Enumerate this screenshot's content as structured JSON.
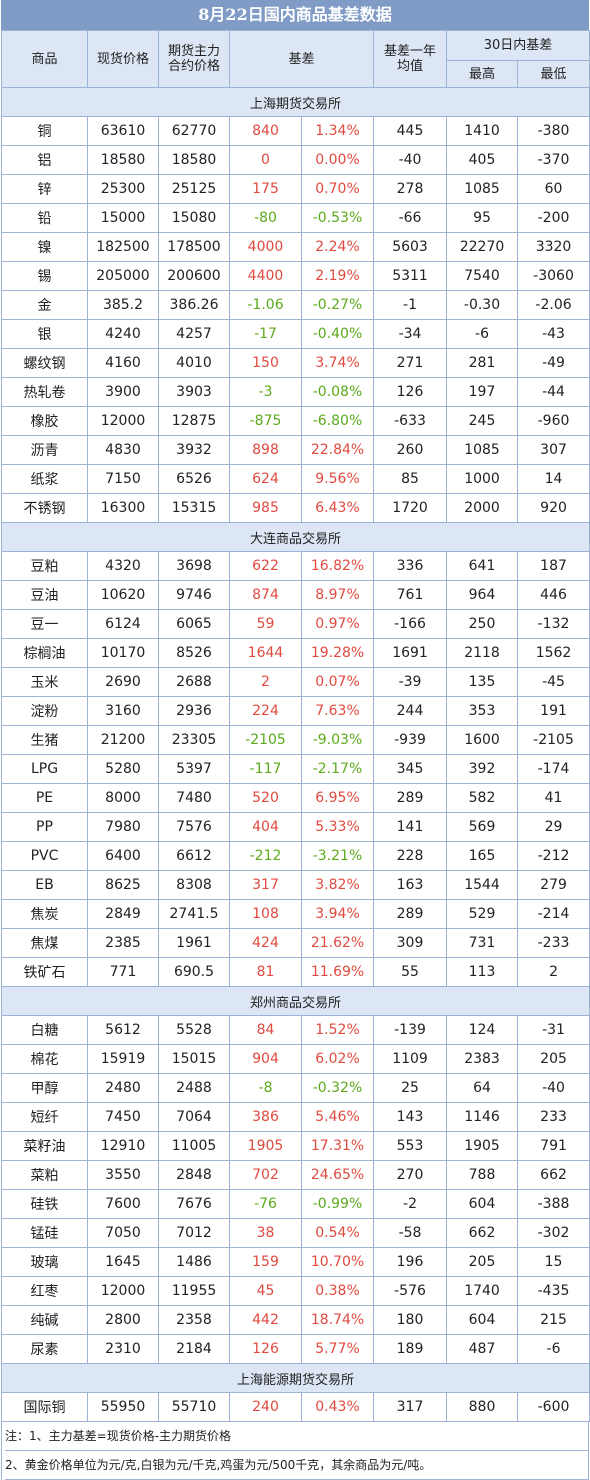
{
  "title": "8月22日国内商品基差数据",
  "header": {
    "commodity": "商品",
    "spot_price": "现货价格",
    "futures_price_line1": "期货主力",
    "futures_price_line2": "合约价格",
    "basis": "基差",
    "basis_avg_line1": "基差一年",
    "basis_avg_line2": "均值",
    "range30": "30日内基差",
    "high": "最高",
    "low": "最低"
  },
  "colors": {
    "header_bg": "#7f9bc6",
    "section_bg": "#dce6f4",
    "positive": "#e04a3f",
    "negative": "#5caa1c",
    "border": "#9db3d5"
  },
  "sections": [
    {
      "name": "上海期货交易所",
      "rows": [
        [
          "铜",
          "63610",
          "62770",
          "840",
          "1.34%",
          "445",
          "1410",
          "-380"
        ],
        [
          "铝",
          "18580",
          "18580",
          "0",
          "0.00%",
          "-40",
          "405",
          "-370"
        ],
        [
          "锌",
          "25300",
          "25125",
          "175",
          "0.70%",
          "278",
          "1085",
          "60"
        ],
        [
          "铅",
          "15000",
          "15080",
          "-80",
          "-0.53%",
          "-66",
          "95",
          "-200"
        ],
        [
          "镍",
          "182500",
          "178500",
          "4000",
          "2.24%",
          "5603",
          "22270",
          "3320"
        ],
        [
          "锡",
          "205000",
          "200600",
          "4400",
          "2.19%",
          "5311",
          "7540",
          "-3060"
        ],
        [
          "金",
          "385.2",
          "386.26",
          "-1.06",
          "-0.27%",
          "-1",
          "-0.30",
          "-2.06"
        ],
        [
          "银",
          "4240",
          "4257",
          "-17",
          "-0.40%",
          "-34",
          "-6",
          "-43"
        ],
        [
          "螺纹钢",
          "4160",
          "4010",
          "150",
          "3.74%",
          "271",
          "281",
          "-49"
        ],
        [
          "热轧卷",
          "3900",
          "3903",
          "-3",
          "-0.08%",
          "126",
          "197",
          "-44"
        ],
        [
          "橡胶",
          "12000",
          "12875",
          "-875",
          "-6.80%",
          "-633",
          "245",
          "-960"
        ],
        [
          "沥青",
          "4830",
          "3932",
          "898",
          "22.84%",
          "260",
          "1085",
          "307"
        ],
        [
          "纸浆",
          "7150",
          "6526",
          "624",
          "9.56%",
          "85",
          "1000",
          "14"
        ],
        [
          "不锈钢",
          "16300",
          "15315",
          "985",
          "6.43%",
          "1720",
          "2000",
          "920"
        ]
      ]
    },
    {
      "name": "大连商品交易所",
      "rows": [
        [
          "豆粕",
          "4320",
          "3698",
          "622",
          "16.82%",
          "336",
          "641",
          "187"
        ],
        [
          "豆油",
          "10620",
          "9746",
          "874",
          "8.97%",
          "761",
          "964",
          "446"
        ],
        [
          "豆一",
          "6124",
          "6065",
          "59",
          "0.97%",
          "-166",
          "250",
          "-132"
        ],
        [
          "棕榈油",
          "10170",
          "8526",
          "1644",
          "19.28%",
          "1691",
          "2118",
          "1562"
        ],
        [
          "玉米",
          "2690",
          "2688",
          "2",
          "0.07%",
          "-39",
          "135",
          "-45"
        ],
        [
          "淀粉",
          "3160",
          "2936",
          "224",
          "7.63%",
          "244",
          "353",
          "191"
        ],
        [
          "生猪",
          "21200",
          "23305",
          "-2105",
          "-9.03%",
          "-939",
          "1600",
          "-2105"
        ],
        [
          "LPG",
          "5280",
          "5397",
          "-117",
          "-2.17%",
          "345",
          "392",
          "-174"
        ],
        [
          "PE",
          "8000",
          "7480",
          "520",
          "6.95%",
          "289",
          "582",
          "41"
        ],
        [
          "PP",
          "7980",
          "7576",
          "404",
          "5.33%",
          "141",
          "569",
          "29"
        ],
        [
          "PVC",
          "6400",
          "6612",
          "-212",
          "-3.21%",
          "228",
          "165",
          "-212"
        ],
        [
          "EB",
          "8625",
          "8308",
          "317",
          "3.82%",
          "163",
          "1544",
          "279"
        ],
        [
          "焦炭",
          "2849",
          "2741.5",
          "108",
          "3.94%",
          "289",
          "529",
          "-214"
        ],
        [
          "焦煤",
          "2385",
          "1961",
          "424",
          "21.62%",
          "309",
          "731",
          "-233"
        ],
        [
          "铁矿石",
          "771",
          "690.5",
          "81",
          "11.69%",
          "55",
          "113",
          "2"
        ]
      ]
    },
    {
      "name": "郑州商品交易所",
      "rows": [
        [
          "白糖",
          "5612",
          "5528",
          "84",
          "1.52%",
          "-139",
          "124",
          "-31"
        ],
        [
          "棉花",
          "15919",
          "15015",
          "904",
          "6.02%",
          "1109",
          "2383",
          "205"
        ],
        [
          "甲醇",
          "2480",
          "2488",
          "-8",
          "-0.32%",
          "25",
          "64",
          "-40"
        ],
        [
          "短纤",
          "7450",
          "7064",
          "386",
          "5.46%",
          "143",
          "1146",
          "233"
        ],
        [
          "菜籽油",
          "12910",
          "11005",
          "1905",
          "17.31%",
          "553",
          "1905",
          "791"
        ],
        [
          "菜粕",
          "3550",
          "2848",
          "702",
          "24.65%",
          "270",
          "788",
          "662"
        ],
        [
          "硅铁",
          "7600",
          "7676",
          "-76",
          "-0.99%",
          "-2",
          "604",
          "-388"
        ],
        [
          "锰硅",
          "7050",
          "7012",
          "38",
          "0.54%",
          "-58",
          "662",
          "-302"
        ],
        [
          "玻璃",
          "1645",
          "1486",
          "159",
          "10.70%",
          "196",
          "205",
          "15"
        ],
        [
          "红枣",
          "12000",
          "11955",
          "45",
          "0.38%",
          "-576",
          "1740",
          "-435"
        ],
        [
          "纯碱",
          "2800",
          "2358",
          "442",
          "18.74%",
          "180",
          "604",
          "215"
        ],
        [
          "尿素",
          "2310",
          "2184",
          "126",
          "5.77%",
          "189",
          "487",
          "-6"
        ]
      ]
    },
    {
      "name": "上海能源期货交易所",
      "rows": [
        [
          "国际铜",
          "55950",
          "55710",
          "240",
          "0.43%",
          "317",
          "880",
          "-600"
        ]
      ]
    }
  ],
  "notes": [
    "注：1、主力基差=现货价格-主力期货价格",
    "2、黄金价格单位为元/克,白银为元/千克,鸡蛋为元/500千克，其余商品为元/吨。"
  ]
}
